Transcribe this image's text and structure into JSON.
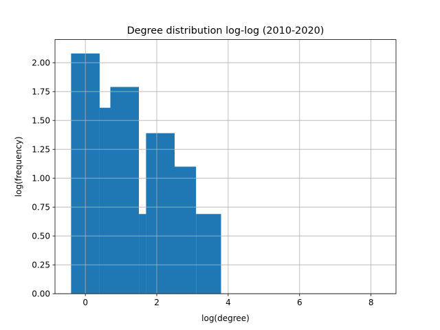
{
  "chart_data": {
    "type": "bar",
    "title": "Degree distribution log-log (2010-2020)",
    "xlabel": "log(degree)",
    "ylabel": "log(frequency)",
    "xlim": [
      -0.85,
      8.7
    ],
    "ylim": [
      0,
      2.2
    ],
    "xticks": [
      0,
      2,
      4,
      6,
      8
    ],
    "yticks": [
      0.0,
      0.25,
      0.5,
      0.75,
      1.0,
      1.25,
      1.5,
      1.75,
      2.0
    ],
    "grid": true,
    "color": "#1f77b4",
    "bars": [
      {
        "x0": -0.4,
        "x1": 0.4,
        "value": 2.08
      },
      {
        "x0": 0.4,
        "x1": 0.7,
        "value": 1.61
      },
      {
        "x0": 0.7,
        "x1": 1.5,
        "value": 1.79
      },
      {
        "x0": 1.5,
        "x1": 1.7,
        "value": 0.69
      },
      {
        "x0": 1.7,
        "x1": 2.5,
        "value": 1.39
      },
      {
        "x0": 2.5,
        "x1": 3.1,
        "value": 1.1
      },
      {
        "x0": 3.1,
        "x1": 3.8,
        "value": 0.69
      }
    ]
  }
}
